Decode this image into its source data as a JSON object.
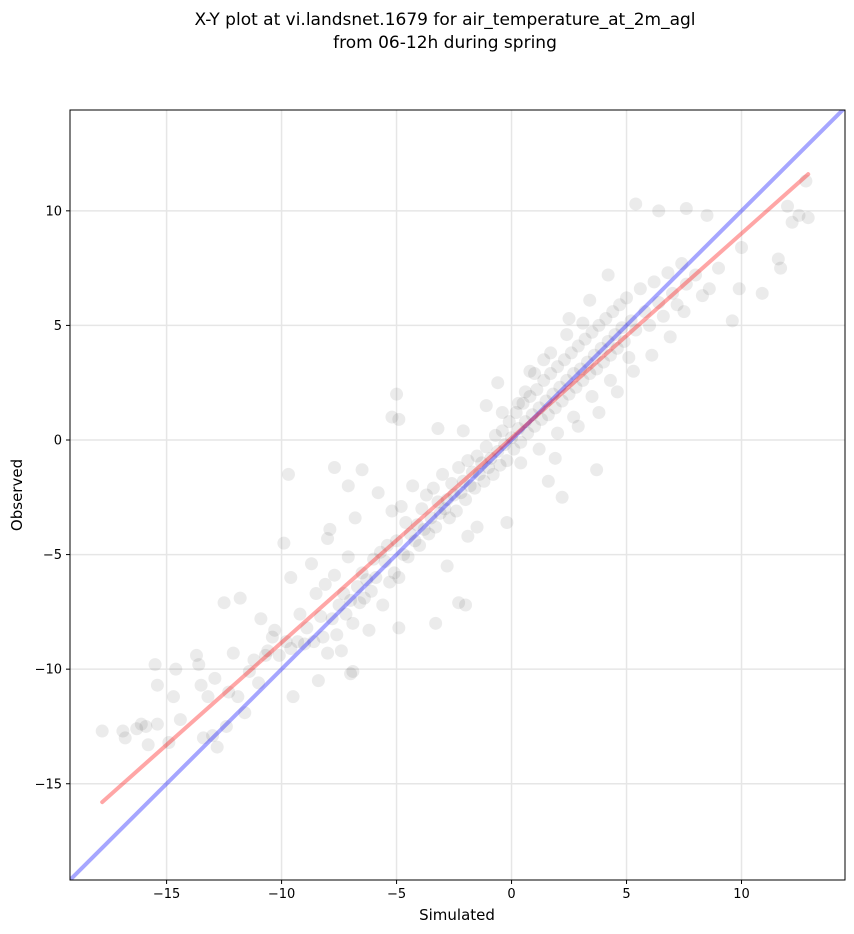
{
  "chart_data": {
    "type": "scatter",
    "title": [
      "X-Y plot at vi.landsnet.1679 for air_temperature_at_2m_agl",
      "from 06-12h during spring"
    ],
    "xlabel": "Simulated",
    "ylabel": "Observed",
    "xlim": [
      -19.2,
      14.5
    ],
    "ylim": [
      -19.2,
      14.4
    ],
    "xticks": [
      -15,
      -10,
      -5,
      0,
      5,
      10
    ],
    "yticks": [
      -15,
      -10,
      -5,
      0,
      5,
      10
    ],
    "xtick_labels": [
      "−15",
      "−10",
      "−5",
      "0",
      "5",
      "10"
    ],
    "ytick_labels": [
      "−15",
      "−10",
      "−5",
      "0",
      "5",
      "10"
    ],
    "grid": true,
    "colors": {
      "points": "#000000",
      "identity_line": "#0000ff",
      "fit_line": "#ff0000"
    },
    "identity_line": {
      "x": [
        -19.2,
        14.5
      ],
      "y": [
        -19.2,
        14.5
      ]
    },
    "fit_line": {
      "x": [
        -17.8,
        12.9
      ],
      "y": [
        -15.8,
        11.6
      ]
    },
    "points_alpha": 0.08,
    "points": [
      [
        -17.8,
        -12.7
      ],
      [
        -16.9,
        -12.7
      ],
      [
        -16.8,
        -13.0
      ],
      [
        -16.3,
        -12.6
      ],
      [
        -16.1,
        -12.4
      ],
      [
        -15.9,
        -12.5
      ],
      [
        -15.8,
        -13.3
      ],
      [
        -15.5,
        -9.8
      ],
      [
        -15.4,
        -10.7
      ],
      [
        -15.4,
        -12.4
      ],
      [
        -14.9,
        -13.2
      ],
      [
        -14.7,
        -11.2
      ],
      [
        -14.6,
        -10.0
      ],
      [
        -14.4,
        -12.2
      ],
      [
        -13.7,
        -9.4
      ],
      [
        -13.6,
        -9.8
      ],
      [
        -13.5,
        -10.7
      ],
      [
        -13.4,
        -13.0
      ],
      [
        -13.2,
        -11.2
      ],
      [
        -13.0,
        -12.9
      ],
      [
        -12.9,
        -10.4
      ],
      [
        -12.8,
        -13.4
      ],
      [
        -12.5,
        -7.1
      ],
      [
        -12.4,
        -12.5
      ],
      [
        -12.3,
        -11.0
      ],
      [
        -12.1,
        -9.3
      ],
      [
        -11.9,
        -11.2
      ],
      [
        -11.8,
        -6.9
      ],
      [
        -11.6,
        -11.9
      ],
      [
        -11.4,
        -10.1
      ],
      [
        -11.2,
        -9.6
      ],
      [
        -11.0,
        -10.6
      ],
      [
        -10.9,
        -7.8
      ],
      [
        -10.7,
        -9.4
      ],
      [
        -10.6,
        -9.2
      ],
      [
        -10.4,
        -8.6
      ],
      [
        -10.3,
        -8.3
      ],
      [
        -10.1,
        -9.4
      ],
      [
        -9.9,
        -4.5
      ],
      [
        -9.8,
        -8.8
      ],
      [
        -9.6,
        -6.0
      ],
      [
        -9.6,
        -9.1
      ],
      [
        -9.5,
        -11.2
      ],
      [
        -9.3,
        -8.8
      ],
      [
        -9.2,
        -7.6
      ],
      [
        -9.0,
        -8.9
      ],
      [
        -8.9,
        -8.2
      ],
      [
        -8.7,
        -5.4
      ],
      [
        -8.6,
        -8.8
      ],
      [
        -8.5,
        -6.7
      ],
      [
        -8.4,
        -10.5
      ],
      [
        -8.3,
        -7.7
      ],
      [
        -8.2,
        -8.6
      ],
      [
        -8.1,
        -6.3
      ],
      [
        -8.0,
        -9.3
      ],
      [
        -7.9,
        -3.9
      ],
      [
        -7.8,
        -7.8
      ],
      [
        -7.7,
        -5.9
      ],
      [
        -7.6,
        -8.5
      ],
      [
        -7.5,
        -7.2
      ],
      [
        -7.4,
        -9.2
      ],
      [
        -7.3,
        -6.7
      ],
      [
        -7.2,
        -7.6
      ],
      [
        -7.1,
        -5.1
      ],
      [
        -7.0,
        -7.0
      ],
      [
        -6.9,
        -8.0
      ],
      [
        -6.8,
        -3.4
      ],
      [
        -6.7,
        -6.4
      ],
      [
        -6.6,
        -7.1
      ],
      [
        -6.5,
        -5.8
      ],
      [
        -6.4,
        -6.9
      ],
      [
        -6.3,
        -6.1
      ],
      [
        -6.2,
        -8.3
      ],
      [
        -6.1,
        -6.6
      ],
      [
        -6.0,
        -5.2
      ],
      [
        -5.9,
        -6.0
      ],
      [
        -5.8,
        -2.3
      ],
      [
        -5.7,
        -4.9
      ],
      [
        -5.6,
        -7.2
      ],
      [
        -5.5,
        -5.3
      ],
      [
        -5.4,
        -4.6
      ],
      [
        -5.3,
        -6.2
      ],
      [
        -5.2,
        -3.1
      ],
      [
        -5.1,
        -5.8
      ],
      [
        -5.0,
        -4.4
      ],
      [
        -4.9,
        -6.0
      ],
      [
        -4.8,
        -2.9
      ],
      [
        -4.7,
        -5.0
      ],
      [
        -4.6,
        -3.6
      ],
      [
        -4.5,
        -5.1
      ],
      [
        -4.4,
        -4.1
      ],
      [
        -4.3,
        -2.0
      ],
      [
        -4.2,
        -4.4
      ],
      [
        -4.1,
        -3.7
      ],
      [
        -4.0,
        -4.6
      ],
      [
        -3.9,
        -3.0
      ],
      [
        -3.8,
        -3.9
      ],
      [
        -3.7,
        -2.4
      ],
      [
        -3.6,
        -4.1
      ],
      [
        -3.5,
        -3.4
      ],
      [
        -3.4,
        -2.1
      ],
      [
        -3.3,
        -3.8
      ],
      [
        -3.2,
        -2.7
      ],
      [
        -3.1,
        -3.2
      ],
      [
        -3.0,
        -1.5
      ],
      [
        -2.9,
        -3.0
      ],
      [
        -2.8,
        -2.6
      ],
      [
        -2.7,
        -3.4
      ],
      [
        -2.6,
        -1.9
      ],
      [
        -2.5,
        -2.4
      ],
      [
        -2.4,
        -3.1
      ],
      [
        -2.3,
        -1.2
      ],
      [
        -2.2,
        -2.3
      ],
      [
        -2.1,
        -1.8
      ],
      [
        -2.0,
        -2.6
      ],
      [
        -1.9,
        -0.9
      ],
      [
        -1.8,
        -2.0
      ],
      [
        -1.7,
        -1.4
      ],
      [
        -1.6,
        -2.1
      ],
      [
        -1.5,
        -0.7
      ],
      [
        -1.4,
        -1.5
      ],
      [
        -1.3,
        -1.0
      ],
      [
        -1.2,
        -1.8
      ],
      [
        -1.1,
        -0.3
      ],
      [
        -1.0,
        -1.2
      ],
      [
        -0.9,
        -0.8
      ],
      [
        -0.8,
        -1.5
      ],
      [
        -0.7,
        0.2
      ],
      [
        -0.6,
        -0.5
      ],
      [
        -0.5,
        -1.1
      ],
      [
        -0.4,
        0.4
      ],
      [
        -0.3,
        -0.2
      ],
      [
        -0.2,
        -0.9
      ],
      [
        -0.1,
        0.8
      ],
      [
        0.0,
        0.1
      ],
      [
        0.1,
        -0.4
      ],
      [
        0.2,
        1.2
      ],
      [
        0.3,
        0.5
      ],
      [
        0.4,
        -0.1
      ],
      [
        0.5,
        1.6
      ],
      [
        0.6,
        0.8
      ],
      [
        0.7,
        0.3
      ],
      [
        0.8,
        1.9
      ],
      [
        0.9,
        1.1
      ],
      [
        1.0,
        0.6
      ],
      [
        1.1,
        2.2
      ],
      [
        1.2,
        1.4
      ],
      [
        1.3,
        0.9
      ],
      [
        1.4,
        2.6
      ],
      [
        1.5,
        1.7
      ],
      [
        1.6,
        1.1
      ],
      [
        1.7,
        2.9
      ],
      [
        1.8,
        2.0
      ],
      [
        1.9,
        1.4
      ],
      [
        2.0,
        3.2
      ],
      [
        2.1,
        2.3
      ],
      [
        2.2,
        1.7
      ],
      [
        2.3,
        3.5
      ],
      [
        2.4,
        2.6
      ],
      [
        2.5,
        2.0
      ],
      [
        2.6,
        3.8
      ],
      [
        2.7,
        2.9
      ],
      [
        2.8,
        2.3
      ],
      [
        2.9,
        4.1
      ],
      [
        3.0,
        3.1
      ],
      [
        3.1,
        2.6
      ],
      [
        3.2,
        4.4
      ],
      [
        3.3,
        3.4
      ],
      [
        3.4,
        2.9
      ],
      [
        3.5,
        4.7
      ],
      [
        3.6,
        3.7
      ],
      [
        3.7,
        3.1
      ],
      [
        3.8,
        5.0
      ],
      [
        3.9,
        4.0
      ],
      [
        4.0,
        3.4
      ],
      [
        4.1,
        5.3
      ],
      [
        4.2,
        4.3
      ],
      [
        4.3,
        3.7
      ],
      [
        4.4,
        5.6
      ],
      [
        4.5,
        4.6
      ],
      [
        4.6,
        4.0
      ],
      [
        4.7,
        5.9
      ],
      [
        4.8,
        4.9
      ],
      [
        4.9,
        4.3
      ],
      [
        5.0,
        6.2
      ],
      [
        5.2,
        5.2
      ],
      [
        5.4,
        4.8
      ],
      [
        5.6,
        6.6
      ],
      [
        5.8,
        5.6
      ],
      [
        6.0,
        5.0
      ],
      [
        6.2,
        6.9
      ],
      [
        6.4,
        6.0
      ],
      [
        6.6,
        5.4
      ],
      [
        6.8,
        7.3
      ],
      [
        7.0,
        6.4
      ],
      [
        7.2,
        5.9
      ],
      [
        7.4,
        7.7
      ],
      [
        7.6,
        6.8
      ],
      [
        8.0,
        7.2
      ],
      [
        8.3,
        6.3
      ],
      [
        8.6,
        6.6
      ],
      [
        9.0,
        7.5
      ],
      [
        9.6,
        5.2
      ],
      [
        9.9,
        6.6
      ],
      [
        10.0,
        8.4
      ],
      [
        10.9,
        6.4
      ],
      [
        11.6,
        7.9
      ],
      [
        11.7,
        7.5
      ],
      [
        12.0,
        10.2
      ],
      [
        12.2,
        9.5
      ],
      [
        12.5,
        9.8
      ],
      [
        12.8,
        11.3
      ],
      [
        12.9,
        9.7
      ],
      [
        5.4,
        10.3
      ],
      [
        6.4,
        10.0
      ],
      [
        7.6,
        10.1
      ],
      [
        8.5,
        9.8
      ],
      [
        -5.0,
        2.0
      ],
      [
        -5.2,
        1.0
      ],
      [
        -4.9,
        0.9
      ],
      [
        -3.2,
        0.5
      ],
      [
        -2.1,
        0.4
      ],
      [
        -1.1,
        1.5
      ],
      [
        -0.6,
        2.5
      ],
      [
        -1.9,
        -4.2
      ],
      [
        -2.3,
        -7.1
      ],
      [
        -2.0,
        -7.2
      ],
      [
        -1.5,
        -3.8
      ],
      [
        -0.2,
        -3.6
      ],
      [
        -2.8,
        -5.5
      ],
      [
        -3.3,
        -8.0
      ],
      [
        -4.9,
        -8.2
      ],
      [
        -7.7,
        -1.2
      ],
      [
        -9.7,
        -1.5
      ],
      [
        -8.0,
        -4.3
      ],
      [
        -6.9,
        -10.1
      ],
      [
        -7.0,
        -10.2
      ],
      [
        1.6,
        -1.8
      ],
      [
        2.2,
        -2.5
      ],
      [
        3.7,
        -1.3
      ],
      [
        -6.5,
        -1.3
      ],
      [
        -7.1,
        -2.0
      ],
      [
        0.8,
        3.0
      ],
      [
        1.4,
        3.5
      ],
      [
        2.5,
        5.3
      ],
      [
        3.4,
        6.1
      ],
      [
        4.2,
        7.2
      ],
      [
        1.9,
        -0.8
      ],
      [
        2.9,
        0.6
      ],
      [
        3.8,
        1.2
      ],
      [
        4.6,
        2.1
      ],
      [
        5.3,
        3.0
      ],
      [
        6.1,
        3.7
      ],
      [
        6.9,
        4.5
      ],
      [
        7.5,
        5.6
      ],
      [
        0.3,
        1.6
      ],
      [
        0.6,
        2.1
      ],
      [
        -0.4,
        1.2
      ],
      [
        1.0,
        2.9
      ],
      [
        1.7,
        3.8
      ],
      [
        2.4,
        4.6
      ],
      [
        3.1,
        5.1
      ],
      [
        0.4,
        -1.0
      ],
      [
        1.2,
        -0.4
      ],
      [
        2.0,
        0.3
      ],
      [
        2.7,
        1.0
      ],
      [
        3.5,
        1.9
      ],
      [
        4.3,
        2.6
      ],
      [
        5.1,
        3.6
      ]
    ]
  }
}
